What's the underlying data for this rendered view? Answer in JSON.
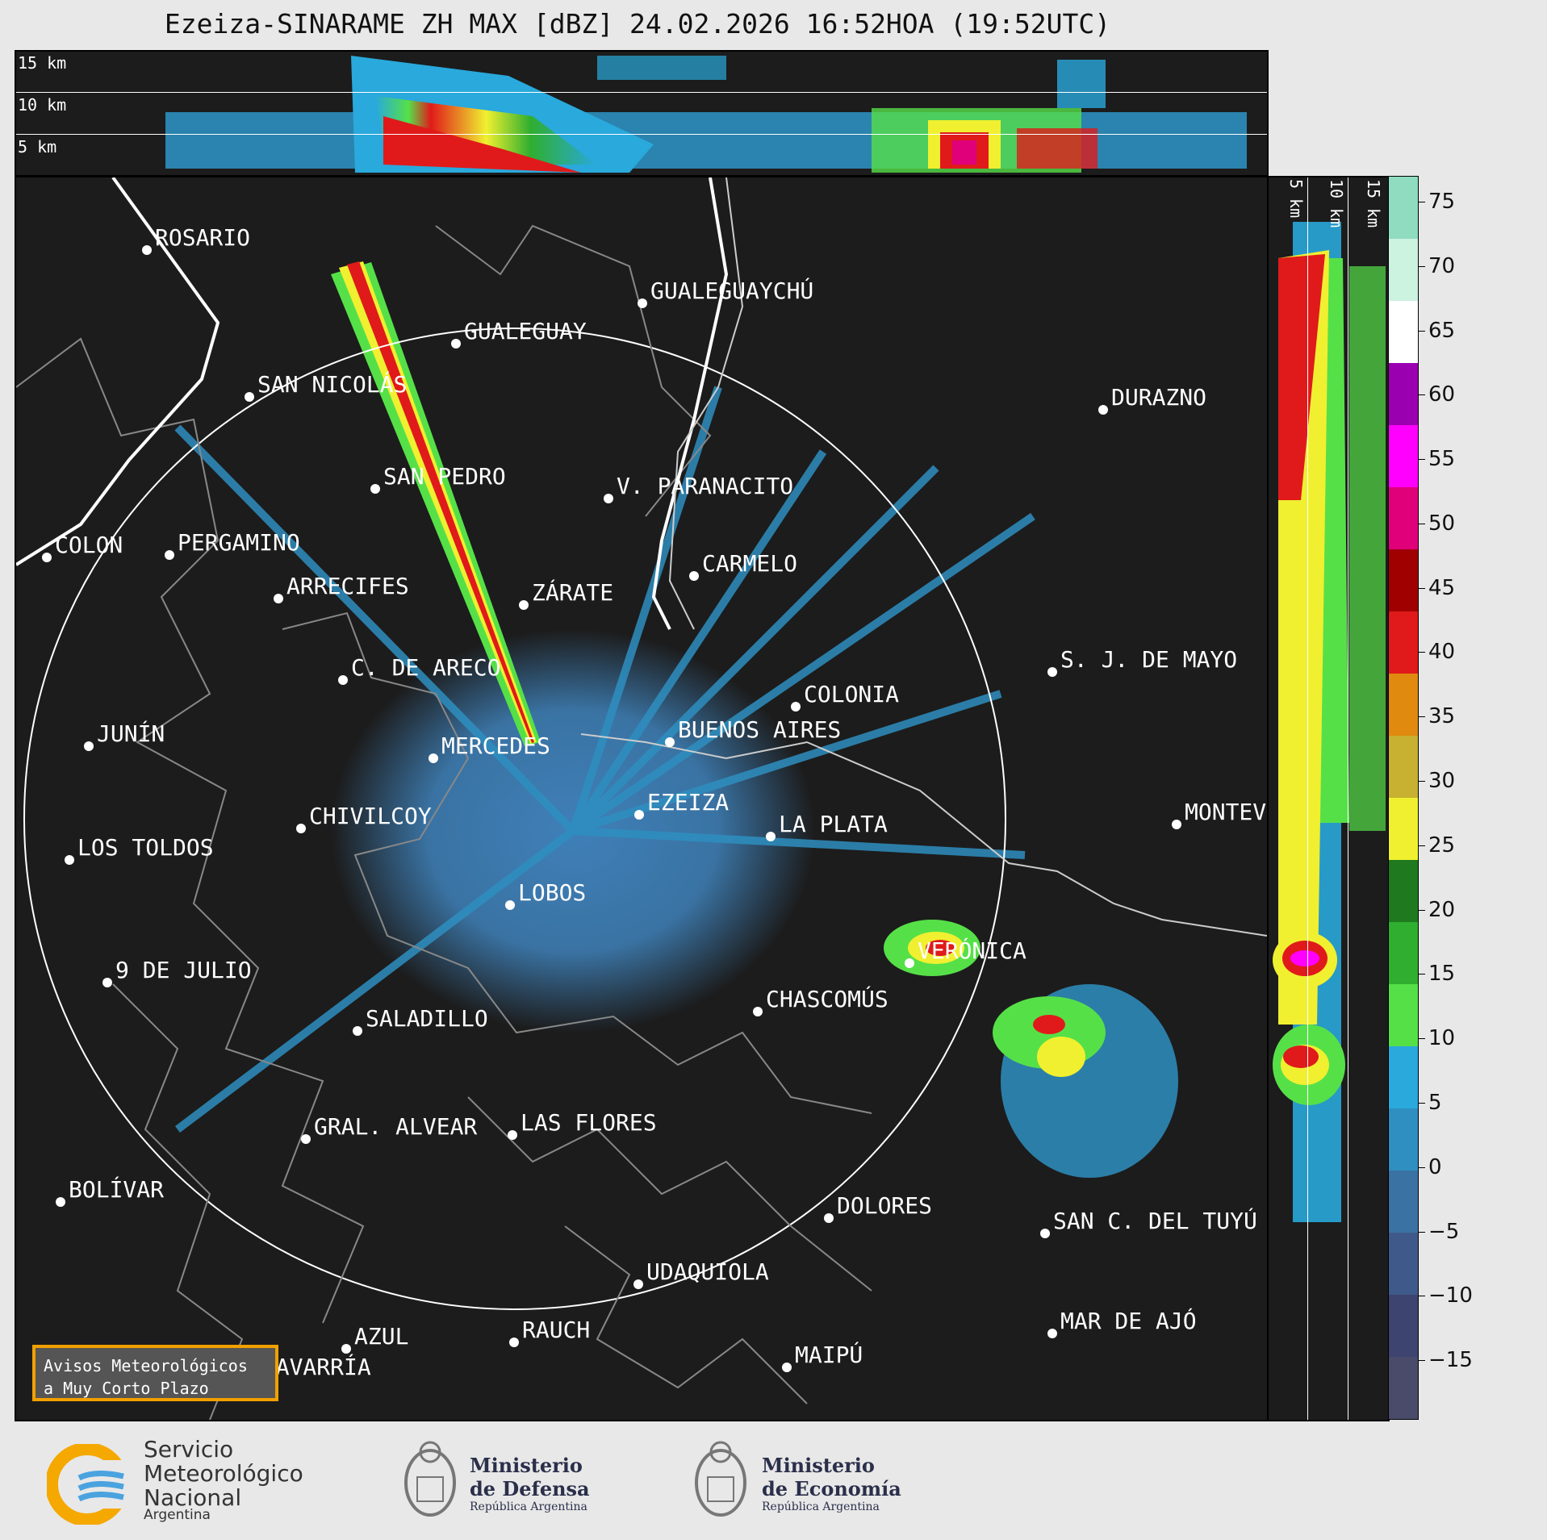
{
  "title": "Ezeiza-SINARAME ZH MAX [dBZ] 24.02.2026 16:52HOA (19:52UTC)",
  "height_labels": [
    "15 km",
    "10 km",
    "5 km"
  ],
  "cities": [
    {
      "name": "ROSARIO",
      "key": "rosario"
    },
    {
      "name": "GUALEGUAYCHÚ",
      "key": "gualeguaychu"
    },
    {
      "name": "GUALEGUAY",
      "key": "gualeguay"
    },
    {
      "name": "SAN NICOLÁS",
      "key": "san-nicolas"
    },
    {
      "name": "DURAZNO",
      "key": "durazno"
    },
    {
      "name": "SAN PEDRO",
      "key": "san-pedro"
    },
    {
      "name": "V. PARANACITO",
      "key": "v-paranacito"
    },
    {
      "name": "COLON",
      "key": "colon"
    },
    {
      "name": "PERGAMINO",
      "key": "pergamino"
    },
    {
      "name": "CARMELO",
      "key": "carmelo"
    },
    {
      "name": "ARRECIFES",
      "key": "arrecifes"
    },
    {
      "name": "ZÁRATE",
      "key": "zarate"
    },
    {
      "name": "S. J. DE MAYO",
      "key": "sj-de-mayo"
    },
    {
      "name": "C. DE ARECO",
      "key": "c-de-areco"
    },
    {
      "name": "COLONIA",
      "key": "colonia"
    },
    {
      "name": "BUENOS AIRES",
      "key": "buenos-aires"
    },
    {
      "name": "JUNÍN",
      "key": "junin"
    },
    {
      "name": "MERCEDES",
      "key": "mercedes"
    },
    {
      "name": "EZEIZA",
      "key": "ezeiza"
    },
    {
      "name": "MONTEV",
      "key": "montevideo"
    },
    {
      "name": "CHIVILCOY",
      "key": "chivilcoy"
    },
    {
      "name": "LA PLATA",
      "key": "la-plata"
    },
    {
      "name": "LOS TOLDOS",
      "key": "los-toldos"
    },
    {
      "name": "LOBOS",
      "key": "lobos"
    },
    {
      "name": "VERÓNICA",
      "key": "veronica"
    },
    {
      "name": "9 DE JULIO",
      "key": "9-de-julio"
    },
    {
      "name": "CHASCOMÚS",
      "key": "chascomus"
    },
    {
      "name": "SALADILLO",
      "key": "saladillo"
    },
    {
      "name": "GRAL. ALVEAR",
      "key": "gral-alvear"
    },
    {
      "name": "LAS FLORES",
      "key": "las-flores"
    },
    {
      "name": "BOLÍVAR",
      "key": "bolivar"
    },
    {
      "name": "DOLORES",
      "key": "dolores"
    },
    {
      "name": "SAN C. DEL TUYÚ",
      "key": "san-c-del-tuyu"
    },
    {
      "name": "UDAQUIOLA",
      "key": "udaquiola"
    },
    {
      "name": "MAR DE AJÓ",
      "key": "mar-de-ajo"
    },
    {
      "name": "AZUL",
      "key": "azul"
    },
    {
      "name": "RAUCH",
      "key": "rauch"
    },
    {
      "name": "MAIPÚ",
      "key": "maipu"
    },
    {
      "name": "OLAVARRÍA",
      "key": "olavarria"
    }
  ],
  "colorbar": {
    "unit": "dBZ",
    "ticks": [
      "75",
      "70",
      "65",
      "60",
      "55",
      "50",
      "45",
      "40",
      "35",
      "30",
      "25",
      "20",
      "15",
      "10",
      "5",
      "0",
      "−5",
      "−10",
      "−15"
    ],
    "colors": [
      "#4a4a6a",
      "#3d4470",
      "#3f5a8a",
      "#3a73a3",
      "#2e8fc0",
      "#29a9dc",
      "#56e048",
      "#2fae2f",
      "#1f7a1f",
      "#f0f030",
      "#c8b030",
      "#e08a10",
      "#e01a1a",
      "#a00000",
      "#e0007a",
      "#ff00ff",
      "#9a00b0",
      "#ffffff",
      "#ccf2e0",
      "#8fdcc0"
    ]
  },
  "avisos": {
    "line1": "Avisos Meteorológicos",
    "line2": "a Muy Corto Plazo"
  },
  "logos": {
    "smn_line1": "Servicio",
    "smn_line2": "Meteorológico",
    "smn_line3": "Nacional",
    "smn_country": "Argentina",
    "defensa_line1": "Ministerio",
    "defensa_line2": "de Defensa",
    "defensa_sub": "República Argentina",
    "economia_line1": "Ministerio",
    "economia_line2": "de Economía",
    "economia_sub": "República Argentina"
  }
}
